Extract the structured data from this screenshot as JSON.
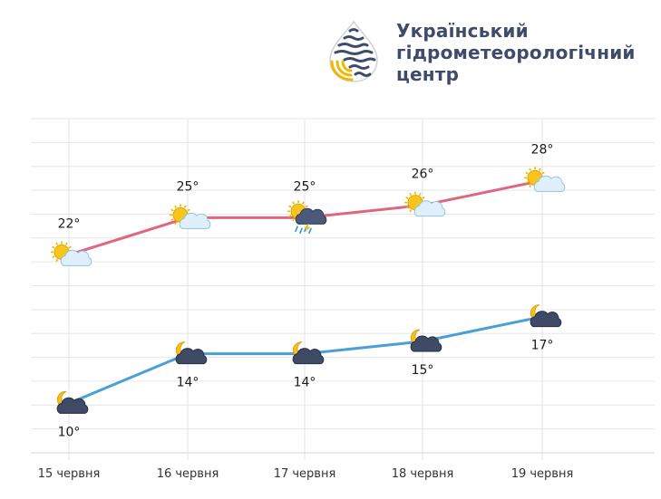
{
  "header": {
    "org_name_lines": [
      "Український",
      "гідрометеорологічний",
      "центр"
    ],
    "logo_icon": "hydromet-drop-logo-icon",
    "colors": {
      "logo_blue": "#3f4b6b",
      "logo_yellow": "#f2b705",
      "text": "#3f4b6b"
    }
  },
  "chart_data": {
    "type": "line",
    "title": "",
    "xlabel": "",
    "ylabel": "",
    "categories": [
      "15 червня",
      "16 червня",
      "17 червня",
      "18 червня",
      "19 червня"
    ],
    "ylim": [
      6,
      33
    ],
    "grid": true,
    "series": [
      {
        "key": "day",
        "values": [
          22,
          25,
          25,
          26,
          28
        ],
        "labels": [
          "22°",
          "25°",
          "25°",
          "26°",
          "28°"
        ],
        "label_position": "above",
        "color": "#e0657f",
        "icons": [
          "sun-cloud-icon",
          "sun-cloud-icon",
          "sun-storm-rain-icon",
          "sun-cloud-icon",
          "sun-cloud-icon"
        ]
      },
      {
        "key": "night",
        "values": [
          10,
          14,
          14,
          15,
          17
        ],
        "labels": [
          "10°",
          "14°",
          "14°",
          "15°",
          "17°"
        ],
        "label_position": "below",
        "color": "#4a9fd6",
        "icons": [
          "moon-cloud-icon",
          "moon-cloud-icon",
          "moon-cloud-icon",
          "moon-cloud-icon",
          "moon-cloud-icon"
        ]
      }
    ]
  }
}
